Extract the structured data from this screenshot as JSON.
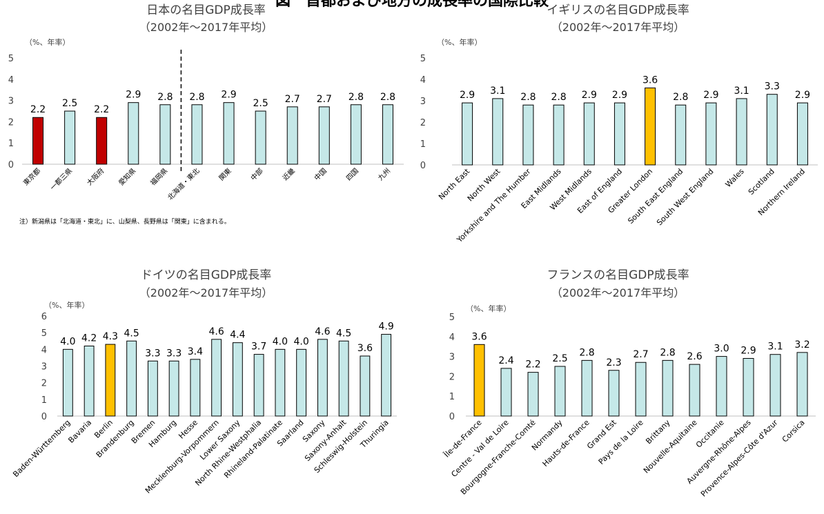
{
  "header_fragment": "図　首都および地方の成長率の国際比較",
  "chart_data": [
    {
      "type": "bar",
      "title": "日本の名目GDP成長率",
      "subtitle": "（2002年～2017年平均）",
      "unit_label": "（%、年率）",
      "ylim": [
        0,
        5
      ],
      "yticks": [
        0,
        1,
        2,
        3,
        4,
        5
      ],
      "categories": [
        "東京都",
        "一都三県",
        "大阪府",
        "愛知県",
        "福岡県",
        "北海道・東北",
        "関東",
        "中部",
        "近畿",
        "中国",
        "四国",
        "九州"
      ],
      "values": [
        2.2,
        2.5,
        2.2,
        2.9,
        2.8,
        2.8,
        2.9,
        2.5,
        2.7,
        2.7,
        2.8,
        2.8
      ],
      "value_labels": [
        "2.2",
        "2.5",
        "2.2",
        "2.9",
        "2.8",
        "2.8",
        "2.9",
        "2.5",
        "2.7",
        "2.7",
        "2.8",
        "2.8"
      ],
      "bar_colors": [
        "#c00000",
        "#c5e8e8",
        "#c00000",
        "#c5e8e8",
        "#c5e8e8",
        "#c5e8e8",
        "#c5e8e8",
        "#c5e8e8",
        "#c5e8e8",
        "#c5e8e8",
        "#c5e8e8",
        "#c5e8e8"
      ],
      "separator_after_index": 4,
      "note": "注）新潟県は「北海道・東北」に、山梨県、長野県は「関東」に含まれる。",
      "grid": false
    },
    {
      "type": "bar",
      "title": "イギリスの名目GDP成長率",
      "subtitle": "（2002年～2017年平均）",
      "unit_label": "（%、年率）",
      "ylim": [
        0,
        5
      ],
      "yticks": [
        0,
        1,
        2,
        3,
        4,
        5
      ],
      "categories": [
        "North East",
        "North West",
        "Yorkshire and The Humber",
        "East Midlands",
        "West Midlands",
        "East of England",
        "Greater London",
        "South East England",
        "South West England",
        "Wales",
        "Scotland",
        "Northern Ireland"
      ],
      "values": [
        2.9,
        3.1,
        2.8,
        2.8,
        2.9,
        2.9,
        3.6,
        2.8,
        2.9,
        3.1,
        3.3,
        2.9
      ],
      "value_labels": [
        "2.9",
        "3.1",
        "2.8",
        "2.8",
        "2.9",
        "2.9",
        "3.6",
        "2.8",
        "2.9",
        "3.1",
        "3.3",
        "2.9"
      ],
      "bar_colors": [
        "#c5e8e8",
        "#c5e8e8",
        "#c5e8e8",
        "#c5e8e8",
        "#c5e8e8",
        "#c5e8e8",
        "#ffc000",
        "#c5e8e8",
        "#c5e8e8",
        "#c5e8e8",
        "#c5e8e8",
        "#c5e8e8"
      ],
      "grid": false
    },
    {
      "type": "bar",
      "title": "ドイツの名目GDP成長率",
      "subtitle": "（2002年～2017年平均）",
      "unit_label": "（%、年率）",
      "ylim": [
        0,
        6
      ],
      "yticks": [
        0,
        1,
        2,
        3,
        4,
        5,
        6
      ],
      "categories": [
        "Baden-Württemberg",
        "Bavaria",
        "Berlin",
        "Brandenburg",
        "Bremen",
        "Hamburg",
        "Hesse",
        "Mecklenburg-Vorpommern",
        "Lower Saxony",
        "North Rhine-Westphalia",
        "Rhineland-Palatinate",
        "Saarland",
        "Saxony",
        "Saxony-Anhalt",
        "Schleswig-Holstein",
        "Thuringia"
      ],
      "values": [
        4.0,
        4.2,
        4.3,
        4.5,
        3.3,
        3.3,
        3.4,
        4.6,
        4.4,
        3.7,
        4.0,
        4.0,
        4.6,
        4.5,
        3.6,
        4.9
      ],
      "value_labels": [
        "4.0",
        "4.2",
        "4.3",
        "4.5",
        "3.3",
        "3.3",
        "3.4",
        "4.6",
        "4.4",
        "3.7",
        "4.0",
        "4.0",
        "4.6",
        "4.5",
        "3.6",
        "4.9"
      ],
      "bar_colors": [
        "#c5e8e8",
        "#c5e8e8",
        "#ffc000",
        "#c5e8e8",
        "#c5e8e8",
        "#c5e8e8",
        "#c5e8e8",
        "#c5e8e8",
        "#c5e8e8",
        "#c5e8e8",
        "#c5e8e8",
        "#c5e8e8",
        "#c5e8e8",
        "#c5e8e8",
        "#c5e8e8",
        "#c5e8e8"
      ],
      "grid": false
    },
    {
      "type": "bar",
      "title": "フランスの名目GDP成長率",
      "subtitle": "（2002年～2017年平均）",
      "unit_label": "（%、年率）",
      "ylim": [
        0,
        5
      ],
      "yticks": [
        0,
        1,
        2,
        3,
        4,
        5
      ],
      "categories": [
        "Île-de-France",
        "Centre - Val de Loire",
        "Bourgogne-Franche-Comté",
        "Normandy",
        "Hauts-de-France",
        "Grand Est",
        "Pays de la Loire",
        "Brittany",
        "Nouvelle-Aquitaine",
        "Occitanie",
        "Auvergne-Rhône-Alpes",
        "Provence-Alpes-Côte d'Azur",
        "Corsica"
      ],
      "values": [
        3.6,
        2.4,
        2.2,
        2.5,
        2.8,
        2.3,
        2.7,
        2.8,
        2.6,
        3.0,
        2.9,
        3.1,
        3.2
      ],
      "value_labels": [
        "3.6",
        "2.4",
        "2.2",
        "2.5",
        "2.8",
        "2.3",
        "2.7",
        "2.8",
        "2.6",
        "3.0",
        "2.9",
        "3.1",
        "3.2"
      ],
      "bar_colors": [
        "#ffc000",
        "#c5e8e8",
        "#c5e8e8",
        "#c5e8e8",
        "#c5e8e8",
        "#c5e8e8",
        "#c5e8e8",
        "#c5e8e8",
        "#c5e8e8",
        "#c5e8e8",
        "#c5e8e8",
        "#c5e8e8",
        "#c5e8e8"
      ],
      "grid": false
    }
  ]
}
